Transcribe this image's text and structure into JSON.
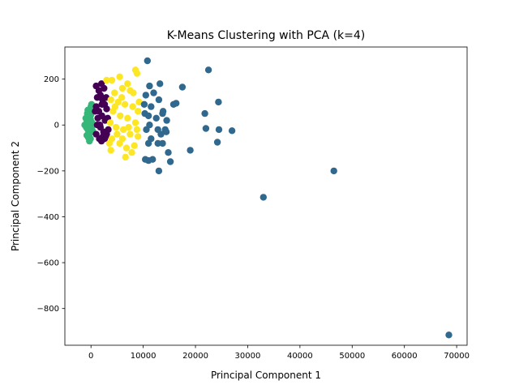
{
  "chart_data": {
    "type": "scatter",
    "title": "K-Means Clustering with PCA (k=4)",
    "xlabel": "Principal Component 1",
    "ylabel": "Principal Component 2",
    "xlim": [
      -5000,
      72000
    ],
    "ylim": [
      -960,
      340
    ],
    "xticks": [
      0,
      10000,
      20000,
      30000,
      40000,
      50000,
      60000,
      70000
    ],
    "xtick_labels": [
      "0",
      "10000",
      "20000",
      "30000",
      "40000",
      "50000",
      "60000",
      "70000"
    ],
    "yticks": [
      200,
      0,
      -200,
      -400,
      -600,
      -800
    ],
    "ytick_labels": [
      "200",
      "0",
      "−200",
      "−400",
      "−600",
      "−800"
    ],
    "grid": false,
    "colors": {
      "cluster_0": "#440154",
      "cluster_1": "#31688e",
      "cluster_2": "#35b779",
      "cluster_3": "#fde725"
    },
    "series": [
      {
        "cluster": 2,
        "color": "#35b779",
        "points": [
          [
            -1200,
            0
          ],
          [
            -800,
            20
          ],
          [
            -600,
            -20
          ],
          [
            -400,
            40
          ],
          [
            -300,
            -40
          ],
          [
            -200,
            60
          ],
          [
            -100,
            -60
          ],
          [
            0,
            80
          ],
          [
            -500,
            10
          ],
          [
            -900,
            -10
          ],
          [
            -700,
            50
          ],
          [
            -300,
            -70
          ],
          [
            200,
            10
          ],
          [
            100,
            -10
          ],
          [
            -1000,
            30
          ],
          [
            -400,
            -30
          ],
          [
            0,
            45
          ],
          [
            -600,
            65
          ],
          [
            -200,
            -5
          ],
          [
            300,
            -25
          ],
          [
            -800,
            -45
          ],
          [
            100,
            90
          ],
          [
            -500,
            -55
          ],
          [
            -100,
            25
          ]
        ]
      },
      {
        "cluster": 0,
        "color": "#440154",
        "points": [
          [
            1000,
            170
          ],
          [
            1500,
            150
          ],
          [
            2000,
            180
          ],
          [
            2500,
            160
          ],
          [
            1200,
            120
          ],
          [
            1800,
            130
          ],
          [
            2200,
            110
          ],
          [
            2600,
            90
          ],
          [
            1000,
            80
          ],
          [
            1500,
            60
          ],
          [
            2100,
            40
          ],
          [
            2700,
            20
          ],
          [
            1200,
            0
          ],
          [
            1800,
            -10
          ],
          [
            2400,
            -30
          ],
          [
            2800,
            -50
          ],
          [
            1000,
            -40
          ],
          [
            1600,
            -60
          ],
          [
            2000,
            -70
          ],
          [
            2600,
            -60
          ],
          [
            3000,
            70
          ],
          [
            3200,
            30
          ],
          [
            3300,
            -20
          ],
          [
            2900,
            120
          ],
          [
            1300,
            30
          ],
          [
            2300,
            -50
          ],
          [
            800,
            60
          ],
          [
            1700,
            0
          ],
          [
            2100,
            90
          ],
          [
            3000,
            -40
          ]
        ]
      },
      {
        "cluster": 3,
        "color": "#fde725",
        "points": [
          [
            3000,
            195
          ],
          [
            4000,
            195
          ],
          [
            5500,
            210
          ],
          [
            7000,
            180
          ],
          [
            8500,
            240
          ],
          [
            8800,
            225
          ],
          [
            6000,
            160
          ],
          [
            7500,
            150
          ],
          [
            4500,
            140
          ],
          [
            3800,
            110
          ],
          [
            5200,
            100
          ],
          [
            6500,
            90
          ],
          [
            8000,
            80
          ],
          [
            9000,
            60
          ],
          [
            4200,
            60
          ],
          [
            5600,
            40
          ],
          [
            7000,
            30
          ],
          [
            8500,
            10
          ],
          [
            3700,
            10
          ],
          [
            4800,
            -10
          ],
          [
            6200,
            -20
          ],
          [
            7500,
            -40
          ],
          [
            9000,
            -50
          ],
          [
            4000,
            -60
          ],
          [
            5500,
            -80
          ],
          [
            6800,
            -100
          ],
          [
            6600,
            -140
          ],
          [
            7800,
            -120
          ],
          [
            8300,
            -90
          ],
          [
            3800,
            -110
          ],
          [
            5000,
            -40
          ],
          [
            9200,
            100
          ],
          [
            6000,
            -60
          ],
          [
            7200,
            -10
          ],
          [
            4600,
            80
          ],
          [
            8100,
            140
          ],
          [
            5900,
            120
          ],
          [
            3500,
            -80
          ],
          [
            8800,
            -20
          ]
        ]
      },
      {
        "cluster": 1,
        "color": "#31688e",
        "points": [
          [
            10800,
            280
          ],
          [
            22500,
            240
          ],
          [
            11200,
            170
          ],
          [
            13200,
            180
          ],
          [
            17500,
            165
          ],
          [
            10500,
            130
          ],
          [
            12000,
            140
          ],
          [
            10200,
            90
          ],
          [
            11500,
            80
          ],
          [
            13000,
            110
          ],
          [
            13800,
            60
          ],
          [
            15800,
            90
          ],
          [
            16300,
            95
          ],
          [
            10300,
            50
          ],
          [
            11000,
            40
          ],
          [
            12500,
            30
          ],
          [
            13700,
            50
          ],
          [
            14500,
            20
          ],
          [
            11200,
            0
          ],
          [
            10600,
            -20
          ],
          [
            12800,
            -20
          ],
          [
            14200,
            -20
          ],
          [
            14400,
            -30
          ],
          [
            13400,
            -40
          ],
          [
            11500,
            -60
          ],
          [
            12800,
            -80
          ],
          [
            11000,
            -80
          ],
          [
            13700,
            -80
          ],
          [
            19000,
            -110
          ],
          [
            14800,
            -120
          ],
          [
            10400,
            -150
          ],
          [
            11000,
            -155
          ],
          [
            11800,
            -150
          ],
          [
            15200,
            -160
          ],
          [
            13000,
            -200
          ],
          [
            21800,
            50
          ],
          [
            24400,
            100
          ],
          [
            22000,
            -15
          ],
          [
            24500,
            -20
          ],
          [
            27000,
            -25
          ],
          [
            24200,
            -75
          ],
          [
            46500,
            -200
          ],
          [
            33000,
            -315
          ],
          [
            68500,
            -915
          ]
        ]
      }
    ]
  }
}
